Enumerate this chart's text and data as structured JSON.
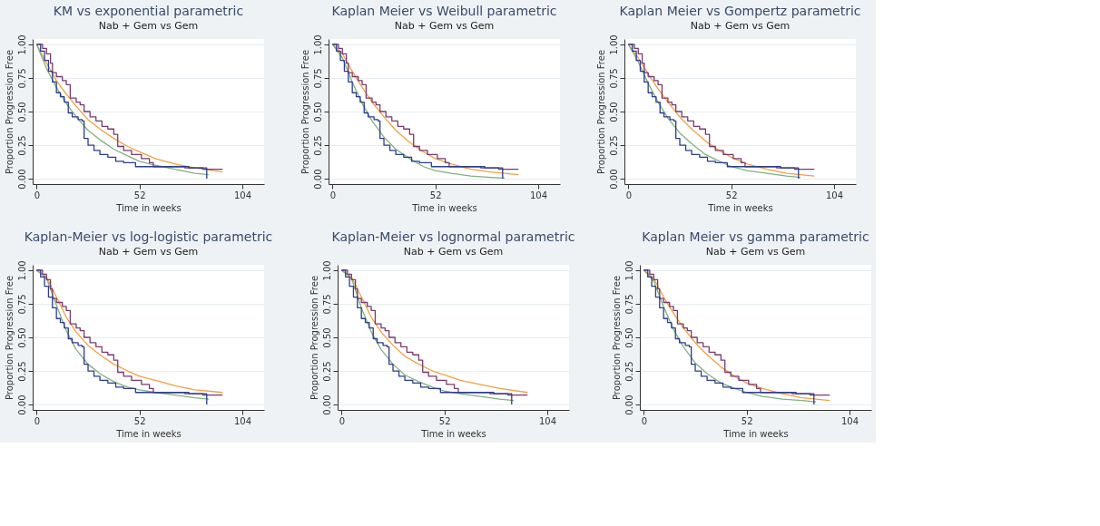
{
  "chart_data": [
    {
      "type": "line",
      "title": "KM vs exponential parametric",
      "subtitle": "Nab + Gem vs Gem",
      "xlabel": "Time in weeks",
      "ylabel": "Proportion Progression Free",
      "xlim": [
        -2,
        115
      ],
      "xticks": [
        0,
        52,
        104
      ],
      "ylim": [
        -0.04,
        1.04
      ],
      "yticks": [
        {
          "value": 0,
          "label": "0.00"
        },
        {
          "value": 0.25,
          "label": "0.25"
        },
        {
          "value": 0.5,
          "label": "0.50"
        },
        {
          "value": 0.75,
          "label": "0.75"
        },
        {
          "value": 1,
          "label": "1.00"
        }
      ],
      "grid": "y",
      "series": [
        {
          "color": "#f0a040",
          "x": [
            0,
            5,
            10,
            15,
            20,
            26,
            32,
            39,
            46,
            52,
            60,
            70,
            80,
            94
          ],
          "values": [
            1,
            0.86,
            0.73,
            0.63,
            0.54,
            0.44,
            0.37,
            0.3,
            0.24,
            0.2,
            0.15,
            0.11,
            0.08,
            0.05
          ]
        },
        {
          "color": "#80b080",
          "x": [
            0,
            5,
            10,
            15,
            20,
            26,
            32,
            39,
            46,
            52,
            60,
            70,
            80,
            87
          ],
          "values": [
            1,
            0.82,
            0.68,
            0.56,
            0.46,
            0.36,
            0.29,
            0.22,
            0.17,
            0.13,
            0.1,
            0.07,
            0.04,
            0.03
          ]
        },
        {
          "type": "step",
          "color": "#7a3a6e",
          "x": [
            0,
            3,
            5,
            7,
            8,
            10,
            13,
            15,
            17,
            20,
            22,
            24,
            27,
            30,
            33,
            36,
            39,
            41,
            44,
            48,
            53,
            57,
            59,
            75,
            84,
            94
          ],
          "values": [
            1,
            0.97,
            0.93,
            0.86,
            0.79,
            0.76,
            0.73,
            0.7,
            0.6,
            0.57,
            0.55,
            0.5,
            0.46,
            0.43,
            0.39,
            0.37,
            0.33,
            0.24,
            0.21,
            0.18,
            0.15,
            0.12,
            0.09,
            0.08,
            0.07,
            0.07
          ]
        },
        {
          "type": "step",
          "color": "#2c3e8c",
          "x": [
            0,
            2,
            4,
            6,
            8,
            10,
            12,
            14,
            16,
            18,
            21,
            23,
            24,
            26,
            29,
            32,
            36,
            40,
            44,
            48,
            50,
            77,
            86,
            86
          ],
          "values": [
            1,
            0.95,
            0.88,
            0.8,
            0.72,
            0.64,
            0.61,
            0.57,
            0.49,
            0.46,
            0.44,
            0.43,
            0.3,
            0.25,
            0.21,
            0.18,
            0.16,
            0.13,
            0.12,
            0.12,
            0.09,
            0.08,
            0.07,
            0
          ]
        }
      ]
    },
    {
      "type": "line",
      "title": "Kaplan Meier vs Weibull parametric",
      "subtitle": "Nab + Gem vs Gem",
      "xlabel": "Time in weeks",
      "ylabel": "Proportion Progression Free",
      "xlim": [
        -2,
        115
      ],
      "xticks": [
        0,
        52,
        104
      ],
      "ylim": [
        -0.04,
        1.04
      ],
      "yticks": [
        {
          "value": 0,
          "label": "0.00"
        },
        {
          "value": 0.25,
          "label": "0.25"
        },
        {
          "value": 0.5,
          "label": "0.50"
        },
        {
          "value": 0.75,
          "label": "0.75"
        },
        {
          "value": 1,
          "label": "1.00"
        }
      ],
      "grid": "y",
      "series": [
        {
          "color": "#f0a040",
          "x": [
            0,
            5,
            10,
            15,
            20,
            26,
            32,
            39,
            46,
            52,
            60,
            70,
            80,
            94
          ],
          "values": [
            1,
            0.93,
            0.8,
            0.68,
            0.57,
            0.46,
            0.36,
            0.27,
            0.2,
            0.15,
            0.11,
            0.07,
            0.05,
            0.03
          ]
        },
        {
          "color": "#80b080",
          "x": [
            0,
            5,
            10,
            15,
            20,
            26,
            32,
            39,
            46,
            52,
            60,
            70,
            80,
            87
          ],
          "values": [
            1,
            0.9,
            0.72,
            0.56,
            0.43,
            0.31,
            0.22,
            0.15,
            0.09,
            0.06,
            0.04,
            0.02,
            0.01,
            0.005
          ]
        },
        {
          "type": "step",
          "color": "#7a3a6e",
          "x": [
            0,
            3,
            5,
            7,
            8,
            10,
            13,
            15,
            17,
            20,
            22,
            24,
            27,
            30,
            33,
            36,
            39,
            41,
            44,
            48,
            53,
            57,
            59,
            75,
            84,
            94
          ],
          "values": [
            1,
            0.97,
            0.93,
            0.86,
            0.79,
            0.76,
            0.73,
            0.7,
            0.6,
            0.57,
            0.55,
            0.5,
            0.46,
            0.43,
            0.39,
            0.37,
            0.33,
            0.24,
            0.21,
            0.18,
            0.15,
            0.12,
            0.09,
            0.08,
            0.07,
            0.07
          ]
        },
        {
          "type": "step",
          "color": "#2c3e8c",
          "x": [
            0,
            2,
            4,
            6,
            8,
            10,
            12,
            14,
            16,
            18,
            21,
            23,
            24,
            26,
            29,
            32,
            36,
            40,
            44,
            48,
            50,
            77,
            86,
            86
          ],
          "values": [
            1,
            0.95,
            0.88,
            0.8,
            0.72,
            0.64,
            0.61,
            0.57,
            0.49,
            0.46,
            0.44,
            0.43,
            0.3,
            0.25,
            0.21,
            0.18,
            0.16,
            0.13,
            0.12,
            0.12,
            0.09,
            0.08,
            0.07,
            0
          ]
        }
      ]
    },
    {
      "type": "line",
      "title": "Kaplan Meier vs Gompertz parametric",
      "subtitle": "Nab + Gem vs Gem",
      "xlabel": "Time in weeks",
      "ylabel": "Proportion Progression Free",
      "xlim": [
        -2,
        115
      ],
      "xticks": [
        0,
        52,
        104
      ],
      "ylim": [
        -0.04,
        1.04
      ],
      "yticks": [
        {
          "value": 0,
          "label": "0.00"
        },
        {
          "value": 0.25,
          "label": "0.25"
        },
        {
          "value": 0.5,
          "label": "0.50"
        },
        {
          "value": 0.75,
          "label": "0.75"
        },
        {
          "value": 1,
          "label": "1.00"
        }
      ],
      "grid": "y",
      "series": [
        {
          "color": "#f0a040",
          "x": [
            0,
            5,
            10,
            15,
            20,
            26,
            32,
            39,
            46,
            52,
            60,
            70,
            80,
            94
          ],
          "values": [
            1,
            0.9,
            0.78,
            0.67,
            0.57,
            0.46,
            0.37,
            0.28,
            0.21,
            0.16,
            0.11,
            0.07,
            0.04,
            0.02
          ]
        },
        {
          "color": "#80b080",
          "x": [
            0,
            5,
            10,
            15,
            20,
            26,
            32,
            39,
            46,
            52,
            60,
            70,
            80,
            87
          ],
          "values": [
            1,
            0.87,
            0.71,
            0.57,
            0.45,
            0.34,
            0.26,
            0.18,
            0.13,
            0.09,
            0.06,
            0.04,
            0.02,
            0.01
          ]
        },
        {
          "type": "step",
          "color": "#7a3a6e",
          "x": [
            0,
            3,
            5,
            7,
            8,
            10,
            13,
            15,
            17,
            20,
            22,
            24,
            27,
            30,
            33,
            36,
            39,
            41,
            44,
            48,
            53,
            57,
            59,
            75,
            84,
            94
          ],
          "values": [
            1,
            0.97,
            0.93,
            0.86,
            0.79,
            0.76,
            0.73,
            0.7,
            0.6,
            0.57,
            0.55,
            0.5,
            0.46,
            0.43,
            0.39,
            0.37,
            0.33,
            0.24,
            0.21,
            0.18,
            0.15,
            0.12,
            0.09,
            0.08,
            0.07,
            0.07
          ]
        },
        {
          "type": "step",
          "color": "#2c3e8c",
          "x": [
            0,
            2,
            4,
            6,
            8,
            10,
            12,
            14,
            16,
            18,
            21,
            23,
            24,
            26,
            29,
            32,
            36,
            40,
            44,
            48,
            50,
            77,
            86,
            86
          ],
          "values": [
            1,
            0.95,
            0.88,
            0.8,
            0.72,
            0.64,
            0.61,
            0.57,
            0.49,
            0.46,
            0.44,
            0.43,
            0.3,
            0.25,
            0.21,
            0.18,
            0.16,
            0.13,
            0.12,
            0.12,
            0.09,
            0.08,
            0.07,
            0
          ]
        }
      ]
    },
    {
      "type": "line",
      "title": "Kaplan-Meier vs log-logistic parametric",
      "subtitle": "Nab + Gem vs Gem",
      "xlabel": "Time in weeks",
      "ylabel": "Proportion Progression Free",
      "xlim": [
        -2,
        115
      ],
      "xticks": [
        0,
        52,
        104
      ],
      "ylim": [
        -0.04,
        1.04
      ],
      "yticks": [
        {
          "value": 0,
          "label": "0.00"
        },
        {
          "value": 0.25,
          "label": "0.25"
        },
        {
          "value": 0.5,
          "label": "0.50"
        },
        {
          "value": 0.75,
          "label": "0.75"
        },
        {
          "value": 1,
          "label": "1.00"
        }
      ],
      "grid": "y",
      "series": [
        {
          "color": "#f0a040",
          "x": [
            0,
            5,
            10,
            15,
            20,
            26,
            32,
            39,
            46,
            52,
            60,
            70,
            80,
            94
          ],
          "values": [
            1,
            0.95,
            0.8,
            0.65,
            0.54,
            0.44,
            0.37,
            0.3,
            0.25,
            0.21,
            0.18,
            0.14,
            0.11,
            0.09
          ]
        },
        {
          "color": "#80b080",
          "x": [
            0,
            5,
            10,
            15,
            20,
            26,
            32,
            39,
            46,
            52,
            60,
            70,
            80,
            87
          ],
          "values": [
            1,
            0.94,
            0.74,
            0.55,
            0.41,
            0.3,
            0.23,
            0.17,
            0.13,
            0.11,
            0.09,
            0.07,
            0.05,
            0.04
          ]
        },
        {
          "type": "step",
          "color": "#7a3a6e",
          "x": [
            0,
            3,
            5,
            7,
            8,
            10,
            13,
            15,
            17,
            20,
            22,
            24,
            27,
            30,
            33,
            36,
            39,
            41,
            44,
            48,
            53,
            57,
            59,
            75,
            84,
            94
          ],
          "values": [
            1,
            0.97,
            0.93,
            0.86,
            0.79,
            0.76,
            0.73,
            0.7,
            0.6,
            0.57,
            0.55,
            0.5,
            0.46,
            0.43,
            0.39,
            0.37,
            0.33,
            0.24,
            0.21,
            0.18,
            0.15,
            0.12,
            0.09,
            0.08,
            0.07,
            0.07
          ]
        },
        {
          "type": "step",
          "color": "#2c3e8c",
          "x": [
            0,
            2,
            4,
            6,
            8,
            10,
            12,
            14,
            16,
            18,
            21,
            23,
            24,
            26,
            29,
            32,
            36,
            40,
            44,
            48,
            50,
            77,
            86,
            86
          ],
          "values": [
            1,
            0.95,
            0.88,
            0.8,
            0.72,
            0.64,
            0.61,
            0.57,
            0.49,
            0.46,
            0.44,
            0.43,
            0.3,
            0.25,
            0.21,
            0.18,
            0.16,
            0.13,
            0.12,
            0.12,
            0.09,
            0.08,
            0.07,
            0
          ]
        }
      ]
    },
    {
      "type": "line",
      "title": "Kaplan-Meier vs lognormal parametric",
      "subtitle": "Nab + Gem vs Gem",
      "xlabel": "Time in weeks",
      "ylabel": "Proportion Progression Free",
      "xlim": [
        -2,
        115
      ],
      "xticks": [
        0,
        52,
        104
      ],
      "ylim": [
        -0.04,
        1.04
      ],
      "yticks": [
        {
          "value": 0,
          "label": "0.00"
        },
        {
          "value": 0.25,
          "label": "0.25"
        },
        {
          "value": 0.5,
          "label": "0.50"
        },
        {
          "value": 0.75,
          "label": "0.75"
        },
        {
          "value": 1,
          "label": "1.00"
        }
      ],
      "grid": "y",
      "series": [
        {
          "color": "#f0a040",
          "x": [
            0,
            5,
            10,
            15,
            20,
            26,
            32,
            39,
            46,
            52,
            60,
            70,
            80,
            94
          ],
          "values": [
            1,
            0.95,
            0.8,
            0.65,
            0.54,
            0.44,
            0.36,
            0.3,
            0.25,
            0.22,
            0.18,
            0.15,
            0.12,
            0.09
          ]
        },
        {
          "color": "#80b080",
          "x": [
            0,
            5,
            10,
            15,
            20,
            26,
            32,
            39,
            46,
            52,
            60,
            70,
            80,
            87
          ],
          "values": [
            1,
            0.94,
            0.72,
            0.54,
            0.41,
            0.3,
            0.22,
            0.17,
            0.13,
            0.1,
            0.08,
            0.06,
            0.04,
            0.03
          ]
        },
        {
          "type": "step",
          "color": "#7a3a6e",
          "x": [
            0,
            3,
            5,
            7,
            8,
            10,
            13,
            15,
            17,
            20,
            22,
            24,
            27,
            30,
            33,
            36,
            39,
            41,
            44,
            48,
            53,
            57,
            59,
            75,
            84,
            94
          ],
          "values": [
            1,
            0.97,
            0.93,
            0.86,
            0.79,
            0.76,
            0.73,
            0.7,
            0.6,
            0.57,
            0.55,
            0.5,
            0.46,
            0.43,
            0.39,
            0.37,
            0.33,
            0.24,
            0.21,
            0.18,
            0.15,
            0.12,
            0.09,
            0.08,
            0.07,
            0.07
          ]
        },
        {
          "type": "step",
          "color": "#2c3e8c",
          "x": [
            0,
            2,
            4,
            6,
            8,
            10,
            12,
            14,
            16,
            18,
            21,
            23,
            24,
            26,
            29,
            32,
            36,
            40,
            44,
            48,
            50,
            77,
            86,
            86
          ],
          "values": [
            1,
            0.95,
            0.88,
            0.8,
            0.72,
            0.64,
            0.61,
            0.57,
            0.49,
            0.46,
            0.44,
            0.43,
            0.3,
            0.25,
            0.21,
            0.18,
            0.16,
            0.13,
            0.12,
            0.12,
            0.09,
            0.08,
            0.07,
            0
          ]
        }
      ]
    },
    {
      "type": "line",
      "title": "Kaplan Meier vs gamma parametric",
      "subtitle": "Nab + Gem vs Gem",
      "xlabel": "Time in weeks",
      "ylabel": "Proportion Progression Free",
      "xlim": [
        -2,
        115
      ],
      "xticks": [
        0,
        52,
        104
      ],
      "ylim": [
        -0.04,
        1.04
      ],
      "yticks": [
        {
          "value": 0,
          "label": "0.00"
        },
        {
          "value": 0.25,
          "label": "0.25"
        },
        {
          "value": 0.5,
          "label": "0.50"
        },
        {
          "value": 0.75,
          "label": "0.75"
        },
        {
          "value": 1,
          "label": "1.00"
        }
      ],
      "grid": "y",
      "series": [
        {
          "color": "#f0a040",
          "x": [
            0,
            5,
            10,
            15,
            20,
            26,
            32,
            39,
            46,
            52,
            60,
            70,
            80,
            94
          ],
          "values": [
            1,
            0.94,
            0.8,
            0.68,
            0.57,
            0.46,
            0.37,
            0.28,
            0.21,
            0.16,
            0.12,
            0.08,
            0.05,
            0.03
          ]
        },
        {
          "color": "#80b080",
          "x": [
            0,
            5,
            10,
            15,
            20,
            26,
            32,
            39,
            46,
            52,
            60,
            70,
            80,
            87
          ],
          "values": [
            1,
            0.92,
            0.73,
            0.56,
            0.43,
            0.31,
            0.23,
            0.16,
            0.12,
            0.09,
            0.06,
            0.04,
            0.03,
            0.02
          ]
        },
        {
          "type": "step",
          "color": "#7a3a6e",
          "x": [
            0,
            3,
            5,
            7,
            8,
            10,
            13,
            15,
            17,
            20,
            22,
            24,
            27,
            30,
            33,
            36,
            39,
            41,
            44,
            48,
            53,
            57,
            59,
            75,
            84,
            94
          ],
          "values": [
            1,
            0.97,
            0.93,
            0.86,
            0.79,
            0.76,
            0.73,
            0.7,
            0.6,
            0.57,
            0.55,
            0.5,
            0.46,
            0.43,
            0.39,
            0.37,
            0.33,
            0.24,
            0.21,
            0.18,
            0.15,
            0.12,
            0.09,
            0.08,
            0.07,
            0.07
          ]
        },
        {
          "type": "step",
          "color": "#2c3e8c",
          "x": [
            0,
            2,
            4,
            6,
            8,
            10,
            12,
            14,
            16,
            18,
            21,
            23,
            24,
            26,
            29,
            32,
            36,
            40,
            44,
            48,
            50,
            77,
            86,
            86
          ],
          "values": [
            1,
            0.95,
            0.88,
            0.8,
            0.72,
            0.64,
            0.61,
            0.57,
            0.49,
            0.46,
            0.44,
            0.43,
            0.3,
            0.25,
            0.21,
            0.18,
            0.16,
            0.13,
            0.12,
            0.12,
            0.09,
            0.08,
            0.07,
            0
          ]
        }
      ]
    }
  ]
}
